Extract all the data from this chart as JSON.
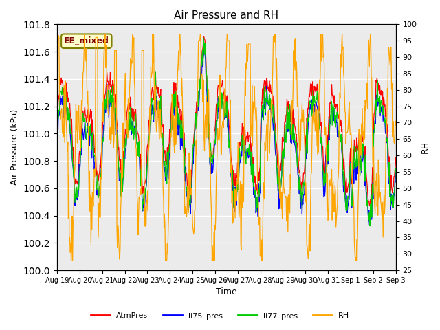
{
  "title": "Air Pressure and RH",
  "xlabel": "Time",
  "ylabel_left": "Air Pressure (kPa)",
  "ylabel_right": "RH",
  "annotation": "EE_mixed",
  "ylim_left": [
    100.0,
    101.8
  ],
  "ylim_right": [
    25,
    100
  ],
  "yticks_left": [
    100.0,
    100.2,
    100.4,
    100.6,
    100.8,
    101.0,
    101.2,
    101.4,
    101.6,
    101.8
  ],
  "yticks_right": [
    25,
    30,
    35,
    40,
    45,
    50,
    55,
    60,
    65,
    70,
    75,
    80,
    85,
    90,
    95,
    100
  ],
  "xtick_labels": [
    "Aug 19",
    "Aug 20",
    "Aug 21",
    "Aug 22",
    "Aug 23",
    "Aug 24",
    "Aug 25",
    "Aug 26",
    "Aug 27",
    "Aug 28",
    "Aug 29",
    "Aug 30",
    "Aug 31",
    "Sep 1",
    "Sep 2",
    "Sep 3"
  ],
  "colors": {
    "AtmPres": "#FF0000",
    "li75_pres": "#0000FF",
    "li77_pres": "#00CC00",
    "RH": "#FFA500"
  },
  "background_color": "#FFFFFF",
  "plot_bg_color": "#EBEBEB",
  "grid_color": "#FFFFFF",
  "annotation_bg": "#FFFFCC",
  "annotation_fg": "#800000",
  "annotation_border": "#808000"
}
